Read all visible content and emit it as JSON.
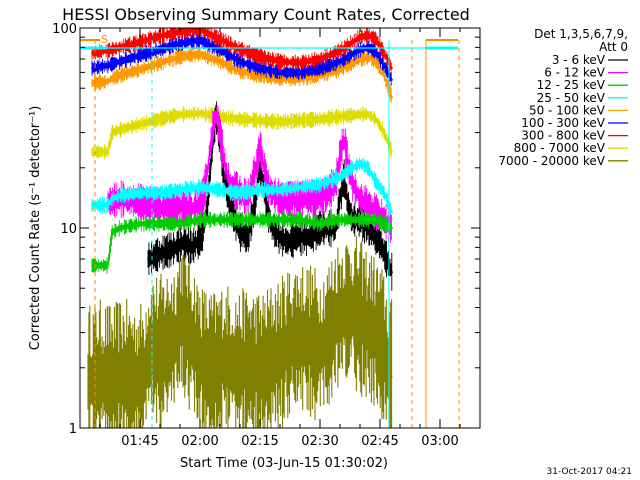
{
  "chart_data": {
    "type": "line",
    "title": "HESSI Observing Summary Count Rates, Corrected",
    "xlabel": "Start Time (03-Jun-15 01:30:02)",
    "ylabel": "Corrected Count Rate (s⁻¹ detector⁻¹)",
    "yscale": "log",
    "ylim": [
      1,
      100
    ],
    "xlim_minutes_after_0130": [
      0,
      100
    ],
    "x_tick_labels": [
      "01:45",
      "02:00",
      "02:15",
      "02:30",
      "02:45",
      "03:00"
    ],
    "x_ticks_minutes_after_0130": [
      15,
      30,
      45,
      60,
      75,
      90
    ],
    "y_tick_labels": [
      "1",
      "10",
      "100"
    ],
    "y_ticks": [
      1,
      10,
      100
    ],
    "grid": false,
    "legend_position": "right",
    "legend_header": [
      "Det 1,3,5,6,7,9,",
      "Att 0"
    ],
    "footer_timestamp": "31-Oct-2017 04:21",
    "flag_label": "S",
    "time_unit": "minutes after 01:30",
    "series": [
      {
        "name": "3 - 6 keV",
        "color": "#000000",
        "x": [
          17,
          24,
          26,
          28,
          30,
          31,
          32,
          33,
          34,
          35,
          36,
          38,
          40,
          42,
          44,
          45,
          46,
          47,
          48,
          49,
          50,
          52,
          54,
          56,
          58,
          60,
          62,
          64,
          65,
          66,
          67,
          68,
          70,
          72,
          74,
          75,
          76,
          78
        ],
        "y": [
          7,
          8,
          8.5,
          8,
          8.8,
          10,
          14,
          24,
          37,
          28,
          18,
          12,
          9.5,
          9,
          14,
          21,
          16,
          12,
          10,
          9.5,
          9,
          8.5,
          9,
          9,
          9,
          10,
          10,
          10,
          14,
          18,
          13,
          11,
          11,
          10,
          9,
          8.5,
          7.5,
          6
        ]
      },
      {
        "name": "6 - 12 keV",
        "color": "#ff00ff",
        "x": [
          7,
          10,
          15,
          20,
          24,
          28,
          30,
          31,
          32,
          33,
          34,
          35,
          36,
          37,
          38,
          40,
          42,
          44,
          45,
          46,
          47,
          48,
          50,
          52,
          55,
          58,
          60,
          62,
          64,
          65,
          66,
          67,
          68,
          70,
          72,
          74,
          76,
          78
        ],
        "y": [
          13.5,
          14,
          13.5,
          12.5,
          13,
          12.5,
          13,
          15,
          20,
          30,
          37,
          30,
          22,
          18,
          16,
          15,
          14,
          20,
          26,
          20,
          16,
          15,
          14,
          14,
          14,
          14,
          14,
          15,
          17,
          23,
          28,
          21,
          17,
          14,
          13,
          12,
          11,
          10
        ]
      },
      {
        "name": "12 - 25 keV",
        "color": "#00cc00",
        "x": [
          3,
          5,
          7,
          8,
          10,
          15,
          20,
          25,
          30,
          35,
          40,
          45,
          50,
          55,
          60,
          65,
          70,
          72,
          74,
          76,
          78
        ],
        "y": [
          6.5,
          6.5,
          6.5,
          9.5,
          10,
          10.5,
          10.5,
          10.5,
          11,
          11,
          11,
          11,
          11,
          11,
          10.5,
          11,
          11,
          11,
          11,
          10.5,
          10
        ]
      },
      {
        "name": "25 - 50 keV",
        "color": "#00ffff",
        "x": [
          3,
          5,
          7,
          8,
          10,
          15,
          20,
          25,
          30,
          35,
          40,
          45,
          50,
          55,
          60,
          65,
          68,
          70,
          72,
          74,
          76,
          78
        ],
        "y": [
          13,
          13,
          13,
          14,
          14.5,
          15,
          15,
          15.5,
          16,
          15.5,
          15,
          15.5,
          15.5,
          16,
          16.5,
          18,
          20,
          21,
          20,
          17,
          15,
          12
        ]
      },
      {
        "name": "50 - 100 keV",
        "color": "#ff9900",
        "x": [
          3,
          7,
          8,
          10,
          15,
          20,
          25,
          30,
          35,
          40,
          45,
          50,
          55,
          60,
          65,
          70,
          72,
          74,
          76,
          78
        ],
        "y": [
          53,
          54,
          56,
          58,
          62,
          67,
          72,
          74,
          68,
          61,
          58,
          56,
          56,
          58,
          62,
          70,
          72,
          68,
          58,
          45
        ]
      },
      {
        "name": "100 - 300 keV",
        "color": "#0000ff",
        "x": [
          3,
          7,
          8,
          10,
          15,
          20,
          25,
          30,
          35,
          40,
          45,
          50,
          55,
          60,
          65,
          70,
          72,
          74,
          76,
          78
        ],
        "y": [
          63,
          65,
          66,
          68,
          73,
          78,
          84,
          87,
          78,
          68,
          63,
          60,
          60,
          63,
          68,
          78,
          80,
          76,
          65,
          55
        ]
      },
      {
        "name": "300 - 800 keV",
        "color": "#ff0000",
        "x": [
          3,
          7,
          8,
          10,
          15,
          20,
          25,
          30,
          35,
          40,
          45,
          50,
          55,
          60,
          65,
          70,
          72,
          74,
          76,
          78
        ],
        "y": [
          75,
          77,
          78,
          80,
          85,
          91,
          96,
          98,
          88,
          78,
          72,
          68,
          67,
          70,
          77,
          90,
          92,
          88,
          75,
          63
        ]
      },
      {
        "name": "800 - 7000 keV",
        "color": "#dddd00",
        "x": [
          3,
          7,
          8,
          10,
          15,
          20,
          25,
          30,
          35,
          40,
          45,
          50,
          55,
          60,
          65,
          70,
          72,
          74,
          76,
          78
        ],
        "y": [
          24,
          24,
          30,
          31,
          33,
          35,
          37,
          37.5,
          36,
          35,
          34.5,
          34,
          34.5,
          35,
          36,
          37,
          37,
          35,
          30,
          24
        ]
      },
      {
        "name": "7000 - 20000 keV",
        "color": "#808000",
        "x": [
          2,
          5,
          8,
          10,
          12,
          14,
          16,
          17,
          18,
          20,
          22,
          24,
          25,
          26,
          28,
          30,
          32,
          34,
          36,
          38,
          40,
          42,
          44,
          46,
          48,
          50,
          52,
          54,
          56,
          58,
          60,
          62,
          64,
          66,
          68,
          70,
          72,
          74,
          76,
          77,
          78
        ],
        "y": [
          1.7,
          1.8,
          1.7,
          1.8,
          1.8,
          1.7,
          1.8,
          2.3,
          2.5,
          2.4,
          2.6,
          2.8,
          3.5,
          3.4,
          2.8,
          2.2,
          2,
          2,
          2.2,
          2.1,
          2,
          2.1,
          2,
          2,
          2.2,
          2.3,
          2.6,
          2.8,
          2.8,
          2.7,
          2.5,
          2.8,
          3.5,
          3.8,
          3.9,
          3.6,
          3.2,
          3,
          2.5,
          2,
          1.8
        ]
      }
    ]
  }
}
